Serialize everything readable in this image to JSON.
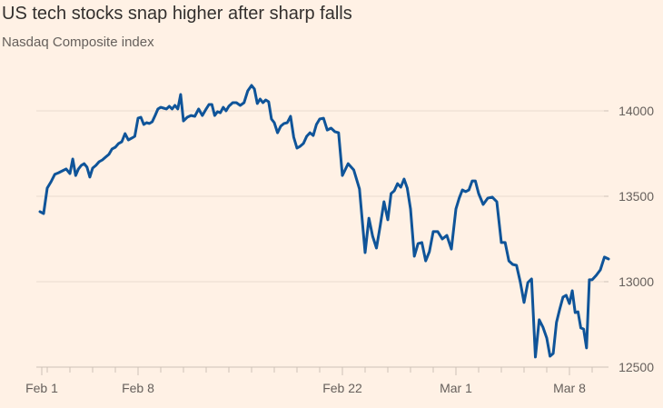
{
  "chart_data": {
    "type": "line",
    "title": "US tech stocks snap higher after sharp falls",
    "subtitle": "Nasdaq Composite index",
    "xlabel": "",
    "ylabel": "",
    "ylim": [
      12500,
      14150
    ],
    "yticks": [
      12500,
      13000,
      13500,
      14000
    ],
    "ytick_labels": [
      "12500",
      "13000",
      "13500",
      "14000"
    ],
    "xtick_labels": [
      {
        "date": "Feb 1",
        "label": "Feb 1"
      },
      {
        "date": "Feb 8",
        "label": "Feb 8"
      },
      {
        "date": "Feb 22",
        "label": "Feb 22"
      },
      {
        "date": "Mar 1",
        "label": "Mar 1"
      },
      {
        "date": "Mar 8",
        "label": "Mar 8"
      }
    ],
    "grid": true,
    "line_color": "#0f5499",
    "background": "#fff1e5",
    "series": [
      {
        "days": [
          {
            "date": "Feb 1",
            "values": [
              13410,
              13399
            ]
          },
          {
            "date": "Feb 2",
            "values": [
              13548,
              13585,
              13628,
              13638,
              13649,
              13660
            ]
          },
          {
            "date": "Feb 3",
            "values": [
              13633,
              13718,
              13622,
              13660,
              13681,
              13691,
              13670,
              13612
            ]
          },
          {
            "date": "Feb 4",
            "values": [
              13665,
              13681,
              13702,
              13713,
              13729,
              13745,
              13777
            ]
          },
          {
            "date": "Feb 5",
            "values": [
              13787,
              13809,
              13819,
              13867,
              13830,
              13840,
              13851
            ]
          },
          {
            "date": "Feb 8",
            "values": [
              13957,
              13963,
              13920,
              13931,
              13926,
              13936,
              13973,
              14011
            ]
          },
          {
            "date": "Feb 9",
            "values": [
              14021,
              14016,
              14011,
              14027,
              14011,
              14032,
              14011,
              14096
            ]
          },
          {
            "date": "Feb 10",
            "values": [
              13941,
              13963,
              13973,
              13968,
              14011,
              13973
            ]
          },
          {
            "date": "Feb 11",
            "values": [
              14011,
              14037,
              14037,
              13973,
              13995,
              13989,
              14021,
              14000
            ]
          },
          {
            "date": "Feb 12",
            "values": [
              14027,
              14048,
              14048,
              14032,
              14048,
              14117
            ]
          },
          {
            "date": "Feb 16",
            "values": [
              14149,
              14128,
              14043,
              14069,
              14048,
              14064,
              14053,
              13952
            ]
          },
          {
            "date": "Feb 17",
            "values": [
              13931,
              13872,
              13910,
              13926,
              13931,
              13968,
              13846
            ]
          },
          {
            "date": "Feb 18",
            "values": [
              13782,
              13793,
              13809,
              13851,
              13872,
              13856,
              13920
            ]
          },
          {
            "date": "Feb 19",
            "values": [
              13952,
              13957,
              13888,
              13899,
              13878,
              13872
            ]
          },
          {
            "date": "Feb 22",
            "values": [
              13622,
              13691,
              13654,
              13543
            ]
          },
          {
            "date": "Feb 23",
            "values": [
              13170,
              13372,
              13266,
              13197,
              13330,
              13468
            ]
          },
          {
            "date": "Feb 24",
            "values": [
              13362,
              13516,
              13532,
              13574,
              13553,
              13601,
              13548
            ]
          },
          {
            "date": "Feb 25",
            "values": [
              13426,
              13149,
              13223,
              13229,
              13122,
              13176
            ]
          },
          {
            "date": "Feb 26",
            "values": [
              13293,
              13293,
              13250,
              13271,
              13191
            ]
          },
          {
            "date": "Mar 1",
            "values": [
              13426,
              13489,
              13537,
              13527,
              13537,
              13590,
              13590
            ]
          },
          {
            "date": "Mar 2",
            "values": [
              13516,
              13452,
              13489,
              13495,
              13468
            ]
          },
          {
            "date": "Mar 3",
            "values": [
              13229,
              13229,
              13122,
              13101,
              13096,
              13000
            ]
          },
          {
            "date": "Mar 4",
            "values": [
              12878,
              12995,
              13016,
              12559,
              12777,
              12734
            ]
          },
          {
            "date": "Mar 5",
            "values": [
              12670,
              12564,
              12580,
              12761,
              12840,
              12910,
              12920
            ]
          },
          {
            "date": "Mar 8",
            "values": [
              12872,
              12947,
              12819,
              12824,
              12729,
              12723,
              12612,
              13011
            ]
          },
          {
            "date": "Mar 9",
            "values": [
              13011,
              13037,
              13069,
              13144,
              13133
            ]
          }
        ]
      }
    ]
  }
}
